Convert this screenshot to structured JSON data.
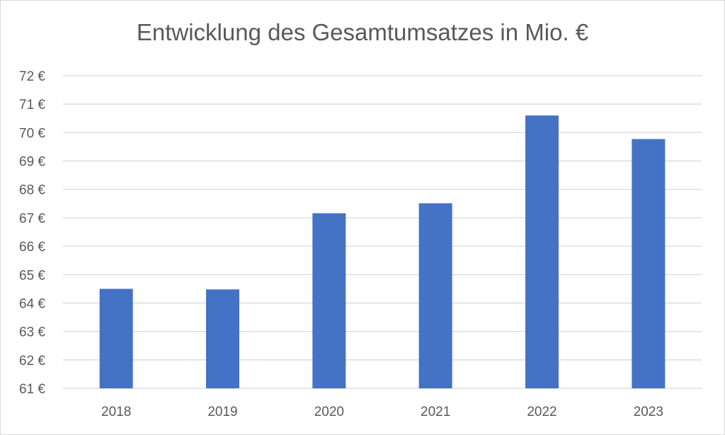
{
  "chart_data": {
    "type": "bar",
    "title": "Entwicklung des Gesamtumsatzes in Mio. €",
    "xlabel": "",
    "ylabel": "",
    "categories": [
      "2018",
      "2019",
      "2020",
      "2021",
      "2022",
      "2023"
    ],
    "values": [
      64.5,
      64.48,
      67.16,
      67.51,
      70.6,
      69.77
    ],
    "ylim": [
      61,
      72
    ],
    "y_ticks": [
      61,
      62,
      63,
      64,
      65,
      66,
      67,
      68,
      69,
      70,
      71,
      72
    ],
    "y_tick_suffix": " €",
    "grid": true,
    "legend": "none",
    "bar_color": "#4472c4",
    "grid_color": "#d9d9d9",
    "text_color": "#595959"
  }
}
